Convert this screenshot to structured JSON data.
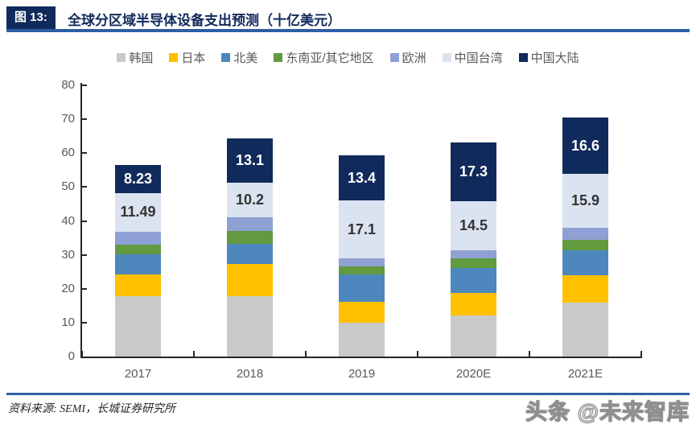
{
  "header": {
    "figure_label": "图 13:",
    "title": "全球分区域半导体设备支出预测（十亿美元）"
  },
  "footer": {
    "source": "资料来源: SEMI，长城证券研究所",
    "watermark": "头条 @未来智库"
  },
  "colors": {
    "accent_navy": "#112A5C",
    "rule_blue": "#2E5FA5",
    "axis_text": "#595959",
    "axis_line": "#262626"
  },
  "chart_data": {
    "type": "bar",
    "stacked": true,
    "title": "全球分区域半导体设备支出预测（十亿美元）",
    "unit": "十亿美元",
    "categories": [
      "2017",
      "2018",
      "2019",
      "2020E",
      "2021E"
    ],
    "series": [
      {
        "name": "韩国",
        "color": "#C9C9C9",
        "values": [
          17.8,
          17.7,
          9.9,
          12.0,
          16.0
        ],
        "data_labels": null
      },
      {
        "name": "日本",
        "color": "#FFC000",
        "values": [
          6.5,
          9.5,
          6.3,
          6.8,
          8.0
        ],
        "data_labels": null
      },
      {
        "name": "北美",
        "color": "#4E86BE",
        "values": [
          5.9,
          6.0,
          8.0,
          7.3,
          7.4
        ],
        "data_labels": null
      },
      {
        "name": "东南亚/其它地区",
        "color": "#619A3F",
        "values": [
          2.9,
          3.9,
          2.4,
          2.8,
          3.0
        ],
        "data_labels": null
      },
      {
        "name": "欧洲",
        "color": "#8EA0D4",
        "values": [
          3.7,
          3.9,
          2.3,
          2.5,
          3.6
        ],
        "data_labels": null
      },
      {
        "name": "中国台湾",
        "color": "#DBE3F1",
        "values": [
          11.49,
          10.2,
          17.1,
          14.5,
          15.9
        ],
        "data_labels": [
          "11.49",
          "10.2",
          "17.1",
          "14.5",
          "15.9"
        ],
        "label_color": "#333333"
      },
      {
        "name": "中国大陆",
        "color": "#112A5C",
        "values": [
          8.23,
          13.1,
          13.4,
          17.3,
          16.6
        ],
        "data_labels": [
          "8.23",
          "13.1",
          "13.4",
          "17.3",
          "16.6"
        ],
        "label_color": "#FFFFFF"
      }
    ],
    "ylim": [
      0,
      80
    ],
    "ytick_step": 10,
    "grid": false,
    "legend_position": "top",
    "bar_totals_approx": [
      56.5,
      64.3,
      59.4,
      63.2,
      70.5
    ]
  }
}
